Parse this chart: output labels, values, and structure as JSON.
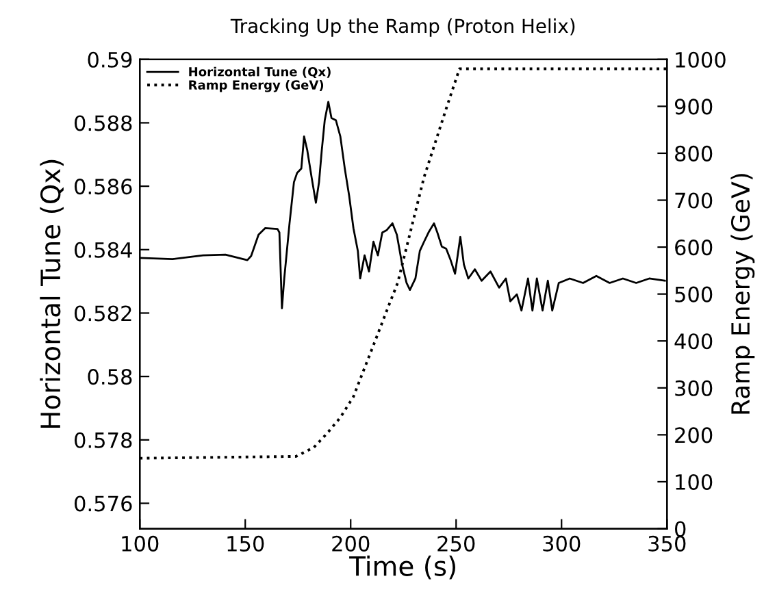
{
  "chart_data": {
    "type": "line",
    "title": "Tracking Up the Ramp (Proton Helix)",
    "xlabel": "Time (s)",
    "ylabel": "Horizontal Tune (Qx)",
    "y2label": "Ramp Energy (GeV)",
    "xlim": [
      100,
      350
    ],
    "xticks": [
      100,
      150,
      200,
      250,
      300,
      350
    ],
    "ylim": [
      0.5752,
      0.59
    ],
    "yticks": [
      0.576,
      0.578,
      0.58,
      0.582,
      0.584,
      0.586,
      0.588,
      0.59
    ],
    "y2lim": [
      0,
      1000
    ],
    "y2ticks": [
      0,
      100,
      200,
      300,
      400,
      500,
      600,
      700,
      800,
      900,
      1000
    ],
    "legend": "top left",
    "grid": false,
    "marker": "none",
    "series": [
      {
        "name": "Horizontal Tune (Qx)",
        "color": "#000000",
        "line_style": "solid",
        "x": [
          100,
          115.5,
          130,
          140.6,
          151,
          152.8,
          156.3,
          159.5,
          165.3,
          166.2,
          167.4,
          168.5,
          171,
          173.1,
          174.6,
          176.6,
          177.9,
          179.4,
          181.5,
          183.5,
          185,
          186.3,
          187.7,
          189.4,
          190.9,
          193,
          195.1,
          197.2,
          199.3,
          201.3,
          203.4,
          204.5,
          206.6,
          208.7,
          210.8,
          212.9,
          215,
          217,
          219.8,
          221.9,
          224.4,
          226.5,
          228.1,
          230.7,
          232.8,
          234.8,
          236.9,
          239.5,
          241.1,
          243.2,
          245.3,
          247.4,
          249.5,
          252,
          253.7,
          255.8,
          258.9,
          262.1,
          266.3,
          270.4,
          273.6,
          275.7,
          278.8,
          281,
          284.1,
          286.2,
          288.3,
          291,
          293.5,
          295.6,
          298.7,
          303.9,
          310.2,
          316.5,
          322.8,
          329.1,
          335.4,
          341.6,
          349
        ],
        "values": [
          0.58374,
          0.5837,
          0.58382,
          0.58384,
          0.58367,
          0.5838,
          0.58447,
          0.58468,
          0.58465,
          0.58454,
          0.58215,
          0.58309,
          0.58483,
          0.58613,
          0.58642,
          0.58656,
          0.58757,
          0.58714,
          0.58627,
          0.58548,
          0.58613,
          0.58714,
          0.58808,
          0.58866,
          0.58815,
          0.58808,
          0.58757,
          0.58656,
          0.58569,
          0.58468,
          0.58396,
          0.58309,
          0.58382,
          0.58331,
          0.58425,
          0.58382,
          0.58454,
          0.58461,
          0.58483,
          0.58447,
          0.58353,
          0.58295,
          0.58273,
          0.58309,
          0.58396,
          0.58425,
          0.58454,
          0.58483,
          0.58454,
          0.5841,
          0.58403,
          0.58367,
          0.58324,
          0.5844,
          0.58353,
          0.58309,
          0.58338,
          0.58302,
          0.58331,
          0.5828,
          0.58309,
          0.58237,
          0.58259,
          0.58208,
          0.58309,
          0.58208,
          0.58309,
          0.58208,
          0.58302,
          0.58208,
          0.58295,
          0.58309,
          0.58295,
          0.58317,
          0.58295,
          0.58309,
          0.58295,
          0.58309,
          0.58302
        ]
      },
      {
        "name": "Ramp Energy (GeV)",
        "color": "#000000",
        "line_style": "dotted",
        "axis": "y2",
        "x": [
          100,
          174.1,
          182.5,
          188.8,
          195.1,
          201.3,
          205.5,
          209.7,
          213.9,
          218.1,
          222.3,
          234.8,
          245.3,
          251.6,
          350
        ],
        "values": [
          150,
          154,
          173,
          203,
          237,
          281,
          330,
          378,
          427,
          476,
          524,
          749,
          895,
          980,
          980
        ]
      }
    ]
  }
}
